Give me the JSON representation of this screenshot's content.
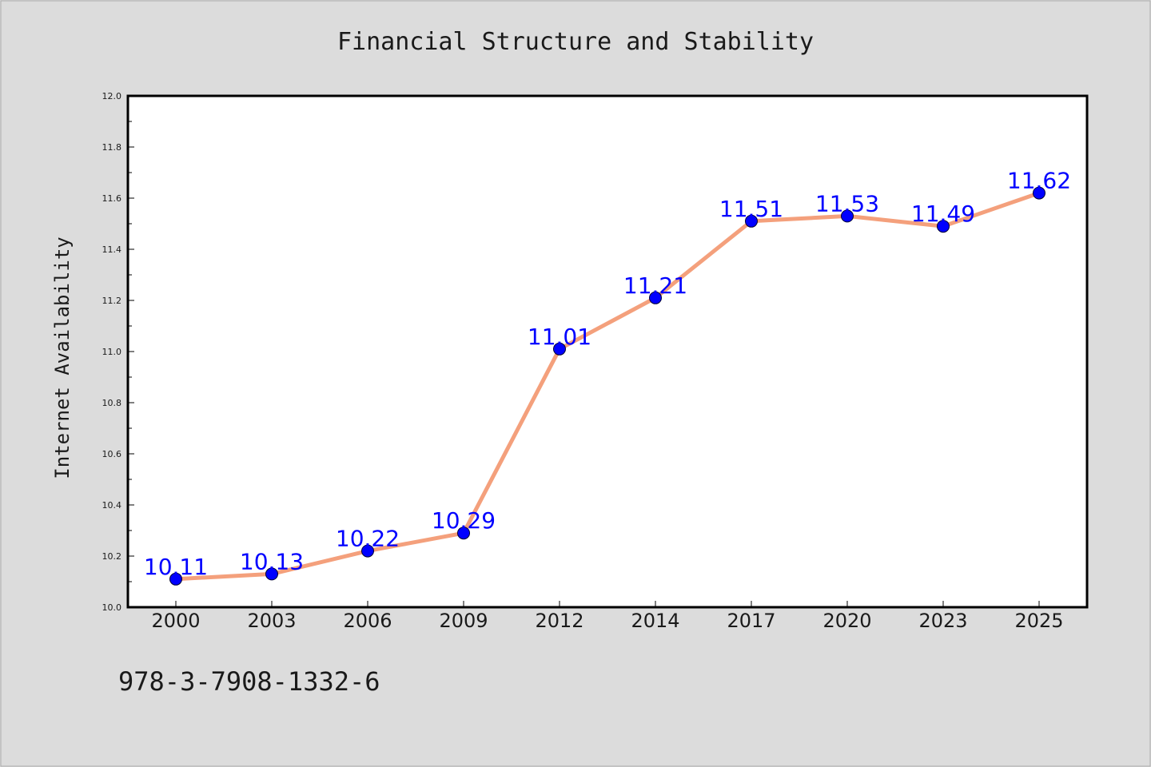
{
  "chart_data": {
    "type": "line",
    "title": "Financial Structure and Stability",
    "xlabel": "",
    "ylabel": "Internet Availability",
    "categories": [
      "2000",
      "2003",
      "2006",
      "2009",
      "2012",
      "2014",
      "2017",
      "2020",
      "2023",
      "2025"
    ],
    "series": [
      {
        "values": [
          10.11,
          10.13,
          10.22,
          10.29,
          11.01,
          11.21,
          11.51,
          11.53,
          11.49,
          11.62
        ],
        "data_labels": [
          "10.11",
          "10.13",
          "10.22",
          "10.29",
          "11.01",
          "11.21",
          "11.51",
          "11.53",
          "11.49",
          "11.62"
        ]
      }
    ],
    "ylim": [
      10.0,
      12.0
    ],
    "yticks": [
      "10.0",
      "10.2",
      "10.4",
      "10.6",
      "10.8",
      "11.0",
      "11.2",
      "11.4",
      "11.6",
      "11.8",
      "12.0"
    ],
    "grid": false,
    "legend": "none",
    "annotation": "978-3-7908-1332-6"
  },
  "colors": {
    "background": "#dcdcdc",
    "plot_area": "#ffffff",
    "line": "#f4a07c",
    "marker": "#0000ff",
    "data_label": "#0000ff",
    "text": "#1a1a1a"
  }
}
